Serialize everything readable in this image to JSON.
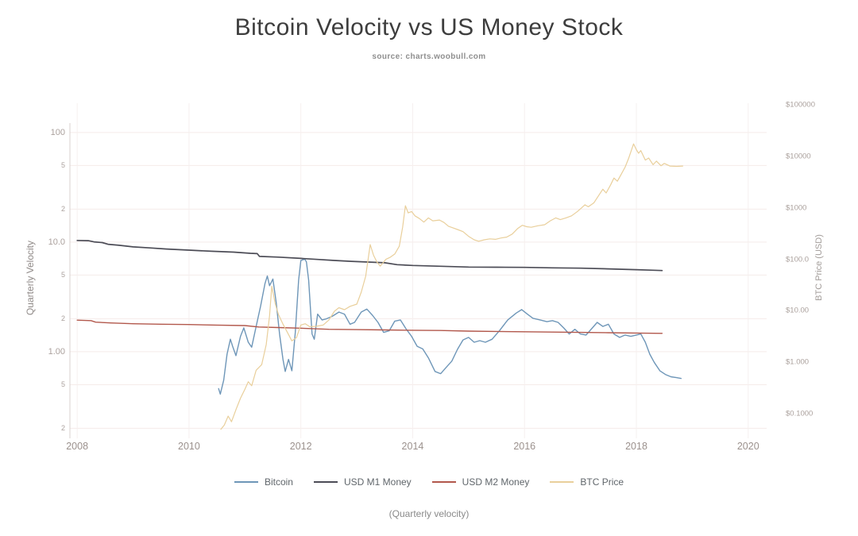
{
  "title": "Bitcoin Velocity vs US Money Stock",
  "subtitle": "source: charts.woobull.com",
  "caption": "(Quarterly velocity)",
  "colors": {
    "background": "#ffffff",
    "title_text": "#3d3d3d",
    "subtitle_text": "#8f8f8f",
    "tick_text": "#aba19d",
    "grid_horizontal": "#f5ebe9",
    "grid_vertical": "#f6f0ef",
    "axis_line": "#d8d2cf",
    "bitcoin": "#6e96b8",
    "usd_m1": "#4c4c56",
    "usd_m2": "#b2584c",
    "btc_price": "#e9cf9b"
  },
  "chart_data": {
    "type": "line",
    "title": "Bitcoin Velocity vs US Money Stock",
    "subtitle": "source: charts.woobull.com",
    "grid": true,
    "legend_position": "bottom",
    "x_axis": {
      "label": "",
      "min": 2007.87,
      "max": 2020.33,
      "ticks": [
        2008,
        2010,
        2012,
        2014,
        2016,
        2018,
        2020
      ]
    },
    "y_left": {
      "label": "Quarterly Velocity",
      "scale": "log",
      "min": 0.162,
      "max": 185,
      "ticks": [
        {
          "value": 100,
          "label": "100",
          "major": true
        },
        {
          "value": 50,
          "label": "5",
          "major": false
        },
        {
          "value": 20,
          "label": "2",
          "major": false
        },
        {
          "value": 10,
          "label": "10.0",
          "major": true
        },
        {
          "value": 5,
          "label": "5",
          "major": false
        },
        {
          "value": 2,
          "label": "2",
          "major": false
        },
        {
          "value": 1,
          "label": "1.00",
          "major": true
        },
        {
          "value": 0.5,
          "label": "5",
          "major": false
        },
        {
          "value": 0.2,
          "label": "2",
          "major": false
        }
      ]
    },
    "y_right": {
      "label": "BTC Price (USD)",
      "scale": "log",
      "min": 0.0333,
      "max": 108000,
      "ticks": [
        {
          "value": 100000,
          "label": "$100000"
        },
        {
          "value": 10000,
          "label": "$10000"
        },
        {
          "value": 1000,
          "label": "$1000"
        },
        {
          "value": 100,
          "label": "$100.0"
        },
        {
          "value": 10,
          "label": "$10.00"
        },
        {
          "value": 1,
          "label": "$1.000"
        },
        {
          "value": 0.1,
          "label": "$0.1000"
        }
      ]
    },
    "series": [
      {
        "name": "Bitcoin",
        "axis": "left",
        "color": "#6e96b8",
        "width": 1.4,
        "points": [
          [
            2010.53,
            0.46
          ],
          [
            2010.56,
            0.41
          ],
          [
            2010.62,
            0.55
          ],
          [
            2010.68,
            0.95
          ],
          [
            2010.74,
            1.3
          ],
          [
            2010.78,
            1.12
          ],
          [
            2010.84,
            0.92
          ],
          [
            2010.92,
            1.38
          ],
          [
            2010.98,
            1.65
          ],
          [
            2011.06,
            1.22
          ],
          [
            2011.12,
            1.1
          ],
          [
            2011.2,
            1.7
          ],
          [
            2011.28,
            2.6
          ],
          [
            2011.36,
            4.2
          ],
          [
            2011.4,
            4.9
          ],
          [
            2011.44,
            4.0
          ],
          [
            2011.5,
            4.6
          ],
          [
            2011.56,
            2.8
          ],
          [
            2011.62,
            1.45
          ],
          [
            2011.68,
            0.85
          ],
          [
            2011.72,
            0.66
          ],
          [
            2011.78,
            0.85
          ],
          [
            2011.84,
            0.67
          ],
          [
            2011.9,
            1.5
          ],
          [
            2011.96,
            4.5
          ],
          [
            2012.0,
            6.8
          ],
          [
            2012.07,
            7.0
          ],
          [
            2012.1,
            6.6
          ],
          [
            2012.14,
            4.5
          ],
          [
            2012.2,
            1.45
          ],
          [
            2012.24,
            1.3
          ],
          [
            2012.3,
            2.2
          ],
          [
            2012.38,
            1.95
          ],
          [
            2012.46,
            2.0
          ],
          [
            2012.56,
            2.1
          ],
          [
            2012.68,
            2.3
          ],
          [
            2012.78,
            2.2
          ],
          [
            2012.88,
            1.78
          ],
          [
            2012.96,
            1.85
          ],
          [
            2013.08,
            2.3
          ],
          [
            2013.18,
            2.45
          ],
          [
            2013.28,
            2.15
          ],
          [
            2013.38,
            1.85
          ],
          [
            2013.48,
            1.5
          ],
          [
            2013.58,
            1.55
          ],
          [
            2013.68,
            1.9
          ],
          [
            2013.78,
            1.95
          ],
          [
            2013.88,
            1.62
          ],
          [
            2013.98,
            1.38
          ],
          [
            2014.08,
            1.12
          ],
          [
            2014.18,
            1.06
          ],
          [
            2014.28,
            0.88
          ],
          [
            2014.4,
            0.66
          ],
          [
            2014.5,
            0.63
          ],
          [
            2014.6,
            0.72
          ],
          [
            2014.7,
            0.82
          ],
          [
            2014.8,
            1.05
          ],
          [
            2014.9,
            1.28
          ],
          [
            2015.0,
            1.35
          ],
          [
            2015.1,
            1.22
          ],
          [
            2015.2,
            1.26
          ],
          [
            2015.3,
            1.22
          ],
          [
            2015.42,
            1.3
          ],
          [
            2015.55,
            1.55
          ],
          [
            2015.7,
            1.95
          ],
          [
            2015.85,
            2.25
          ],
          [
            2015.95,
            2.42
          ],
          [
            2016.05,
            2.2
          ],
          [
            2016.15,
            2.02
          ],
          [
            2016.28,
            1.95
          ],
          [
            2016.4,
            1.88
          ],
          [
            2016.5,
            1.92
          ],
          [
            2016.6,
            1.85
          ],
          [
            2016.7,
            1.65
          ],
          [
            2016.8,
            1.45
          ],
          [
            2016.9,
            1.6
          ],
          [
            2017.0,
            1.45
          ],
          [
            2017.1,
            1.42
          ],
          [
            2017.2,
            1.62
          ],
          [
            2017.3,
            1.85
          ],
          [
            2017.4,
            1.7
          ],
          [
            2017.5,
            1.78
          ],
          [
            2017.6,
            1.45
          ],
          [
            2017.7,
            1.35
          ],
          [
            2017.8,
            1.42
          ],
          [
            2017.9,
            1.38
          ],
          [
            2018.0,
            1.42
          ],
          [
            2018.08,
            1.45
          ],
          [
            2018.16,
            1.22
          ],
          [
            2018.24,
            0.95
          ],
          [
            2018.32,
            0.8
          ],
          [
            2018.42,
            0.67
          ],
          [
            2018.52,
            0.62
          ],
          [
            2018.62,
            0.59
          ],
          [
            2018.72,
            0.58
          ],
          [
            2018.8,
            0.57
          ]
        ]
      },
      {
        "name": "USD M1 Money",
        "axis": "left",
        "color": "#4c4c56",
        "width": 1.7,
        "points": [
          [
            2008.0,
            10.35
          ],
          [
            2008.2,
            10.3
          ],
          [
            2008.3,
            10.05
          ],
          [
            2008.45,
            9.9
          ],
          [
            2008.55,
            9.55
          ],
          [
            2008.75,
            9.35
          ],
          [
            2009.0,
            9.05
          ],
          [
            2009.3,
            8.85
          ],
          [
            2009.6,
            8.65
          ],
          [
            2010.0,
            8.45
          ],
          [
            2010.4,
            8.25
          ],
          [
            2010.8,
            8.1
          ],
          [
            2011.1,
            7.9
          ],
          [
            2011.22,
            7.85
          ],
          [
            2011.26,
            7.4
          ],
          [
            2011.6,
            7.3
          ],
          [
            2012.0,
            7.1
          ],
          [
            2012.3,
            6.95
          ],
          [
            2012.6,
            6.8
          ],
          [
            2012.9,
            6.68
          ],
          [
            2013.2,
            6.58
          ],
          [
            2013.5,
            6.48
          ],
          [
            2013.72,
            6.22
          ],
          [
            2014.0,
            6.12
          ],
          [
            2014.5,
            6.02
          ],
          [
            2015.0,
            5.92
          ],
          [
            2015.5,
            5.9
          ],
          [
            2016.0,
            5.88
          ],
          [
            2016.5,
            5.82
          ],
          [
            2017.0,
            5.78
          ],
          [
            2017.5,
            5.7
          ],
          [
            2018.0,
            5.6
          ],
          [
            2018.25,
            5.55
          ],
          [
            2018.46,
            5.5
          ]
        ]
      },
      {
        "name": "USD M2 Money",
        "axis": "left",
        "color": "#b2584c",
        "width": 1.4,
        "points": [
          [
            2008.0,
            1.94
          ],
          [
            2008.25,
            1.92
          ],
          [
            2008.33,
            1.86
          ],
          [
            2008.6,
            1.83
          ],
          [
            2009.0,
            1.8
          ],
          [
            2009.5,
            1.78
          ],
          [
            2010.0,
            1.77
          ],
          [
            2010.5,
            1.75
          ],
          [
            2011.0,
            1.73
          ],
          [
            2011.25,
            1.68
          ],
          [
            2011.6,
            1.66
          ],
          [
            2012.0,
            1.64
          ],
          [
            2012.5,
            1.6
          ],
          [
            2013.0,
            1.59
          ],
          [
            2013.5,
            1.58
          ],
          [
            2014.0,
            1.57
          ],
          [
            2014.5,
            1.56
          ],
          [
            2015.0,
            1.54
          ],
          [
            2015.5,
            1.53
          ],
          [
            2016.0,
            1.52
          ],
          [
            2016.5,
            1.51
          ],
          [
            2017.0,
            1.5
          ],
          [
            2017.5,
            1.49
          ],
          [
            2018.0,
            1.48
          ],
          [
            2018.46,
            1.47
          ]
        ]
      },
      {
        "name": "BTC Price",
        "axis": "right",
        "color": "#e9cf9b",
        "width": 1.2,
        "points": [
          [
            2010.57,
            0.05
          ],
          [
            2010.63,
            0.06
          ],
          [
            2010.7,
            0.09
          ],
          [
            2010.76,
            0.07
          ],
          [
            2010.84,
            0.12
          ],
          [
            2010.92,
            0.2
          ],
          [
            2011.0,
            0.3
          ],
          [
            2011.06,
            0.42
          ],
          [
            2011.12,
            0.35
          ],
          [
            2011.2,
            0.7
          ],
          [
            2011.3,
            0.9
          ],
          [
            2011.38,
            2.2
          ],
          [
            2011.44,
            8.0
          ],
          [
            2011.48,
            30
          ],
          [
            2011.54,
            14
          ],
          [
            2011.6,
            8.5
          ],
          [
            2011.68,
            5.5
          ],
          [
            2011.76,
            3.8
          ],
          [
            2011.84,
            2.6
          ],
          [
            2011.92,
            3.0
          ],
          [
            2012.0,
            5.3
          ],
          [
            2012.08,
            5.6
          ],
          [
            2012.16,
            4.9
          ],
          [
            2012.28,
            5.0
          ],
          [
            2012.4,
            5.3
          ],
          [
            2012.5,
            6.6
          ],
          [
            2012.6,
            9.8
          ],
          [
            2012.68,
            11.5
          ],
          [
            2012.78,
            10.5
          ],
          [
            2012.88,
            12.2
          ],
          [
            2013.0,
            13.5
          ],
          [
            2013.08,
            23
          ],
          [
            2013.16,
            47
          ],
          [
            2013.24,
            194
          ],
          [
            2013.3,
            120
          ],
          [
            2013.36,
            89
          ],
          [
            2013.42,
            74
          ],
          [
            2013.52,
            100
          ],
          [
            2013.6,
            110
          ],
          [
            2013.68,
            127
          ],
          [
            2013.76,
            180
          ],
          [
            2013.82,
            420
          ],
          [
            2013.87,
            1100
          ],
          [
            2013.92,
            800
          ],
          [
            2013.98,
            850
          ],
          [
            2014.04,
            700
          ],
          [
            2014.12,
            620
          ],
          [
            2014.2,
            530
          ],
          [
            2014.28,
            640
          ],
          [
            2014.36,
            560
          ],
          [
            2014.48,
            580
          ],
          [
            2014.56,
            520
          ],
          [
            2014.64,
            440
          ],
          [
            2014.72,
            410
          ],
          [
            2014.8,
            380
          ],
          [
            2014.9,
            345
          ],
          [
            2015.0,
            280
          ],
          [
            2015.1,
            240
          ],
          [
            2015.18,
            225
          ],
          [
            2015.28,
            240
          ],
          [
            2015.38,
            250
          ],
          [
            2015.48,
            245
          ],
          [
            2015.58,
            260
          ],
          [
            2015.68,
            270
          ],
          [
            2015.78,
            310
          ],
          [
            2015.88,
            400
          ],
          [
            2015.96,
            460
          ],
          [
            2016.04,
            430
          ],
          [
            2016.12,
            420
          ],
          [
            2016.24,
            450
          ],
          [
            2016.36,
            470
          ],
          [
            2016.46,
            560
          ],
          [
            2016.56,
            640
          ],
          [
            2016.64,
            590
          ],
          [
            2016.74,
            640
          ],
          [
            2016.84,
            700
          ],
          [
            2016.94,
            840
          ],
          [
            2017.02,
            1000
          ],
          [
            2017.08,
            1150
          ],
          [
            2017.14,
            1050
          ],
          [
            2017.24,
            1250
          ],
          [
            2017.32,
            1700
          ],
          [
            2017.4,
            2300
          ],
          [
            2017.46,
            1950
          ],
          [
            2017.54,
            2800
          ],
          [
            2017.6,
            3800
          ],
          [
            2017.66,
            3300
          ],
          [
            2017.72,
            4300
          ],
          [
            2017.8,
            6200
          ],
          [
            2017.86,
            9000
          ],
          [
            2017.95,
            17500
          ],
          [
            2018.0,
            13500
          ],
          [
            2018.04,
            11500
          ],
          [
            2018.08,
            13000
          ],
          [
            2018.16,
            8500
          ],
          [
            2018.22,
            9300
          ],
          [
            2018.3,
            6900
          ],
          [
            2018.36,
            8100
          ],
          [
            2018.44,
            6600
          ],
          [
            2018.5,
            7300
          ],
          [
            2018.6,
            6500
          ],
          [
            2018.72,
            6400
          ],
          [
            2018.83,
            6500
          ]
        ]
      }
    ]
  }
}
